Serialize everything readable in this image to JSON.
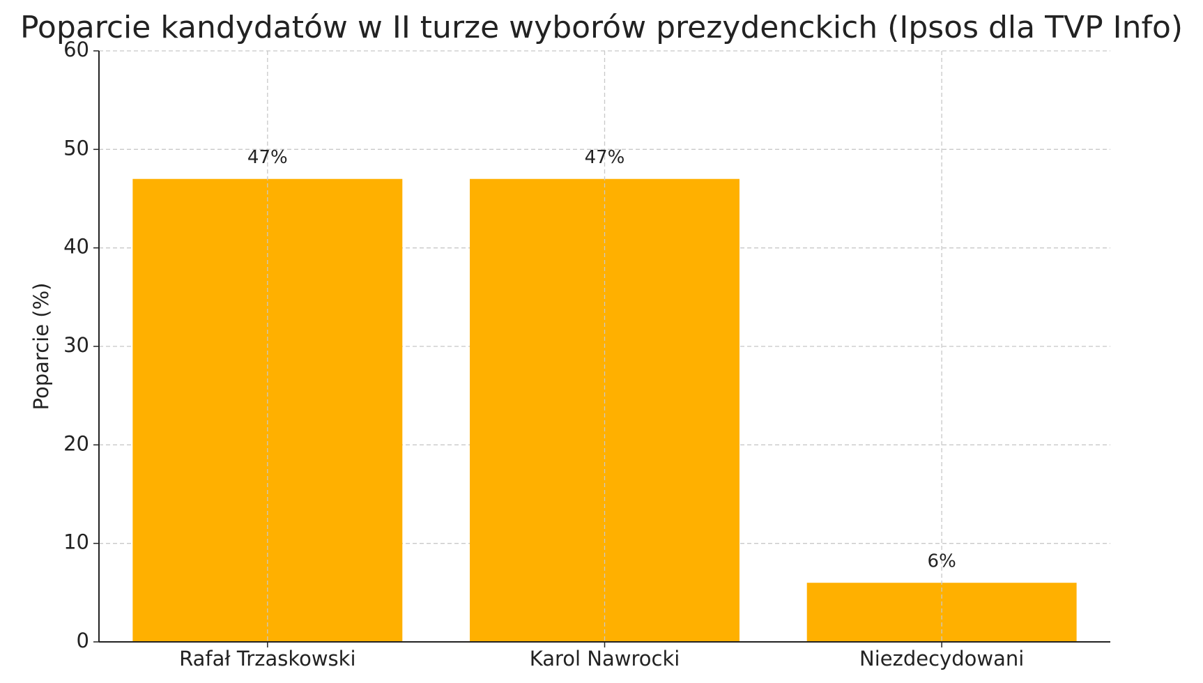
{
  "chart_data": {
    "type": "bar",
    "title": "Poparcie kandydatów w II turze wyborów prezydenckich (Ipsos dla TVP Info)",
    "y_label": "Poparcie (%)",
    "categories": [
      "Rafał Trzaskowski",
      "Karol Nawrocki",
      "Niezdecydowani"
    ],
    "values": [
      47,
      47,
      6
    ],
    "value_labels": [
      "47%",
      "47%",
      "6%"
    ],
    "color": "#ffb000",
    "ylim": [
      0,
      60
    ],
    "yticks": [
      0,
      10,
      20,
      30,
      40,
      50,
      60
    ],
    "grid": true
  }
}
